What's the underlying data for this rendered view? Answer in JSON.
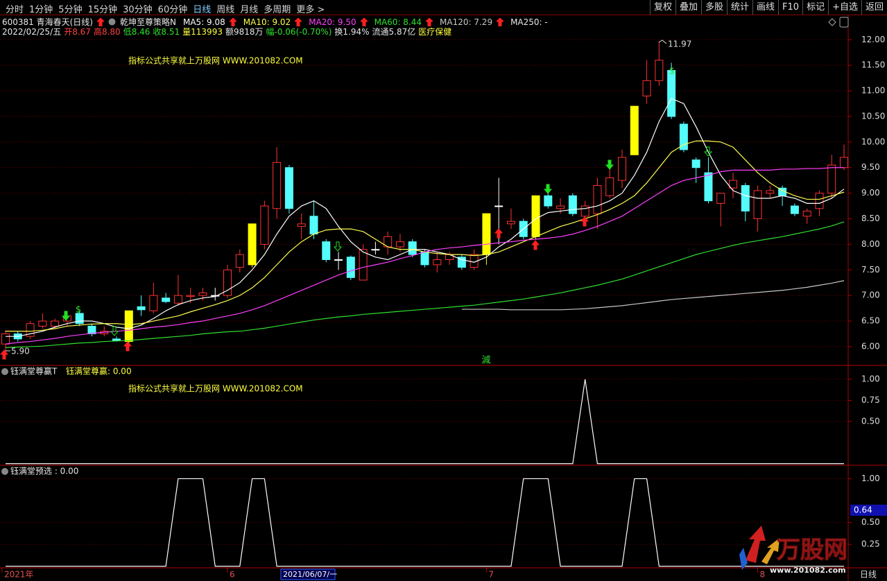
{
  "toolbar": {
    "tabs": [
      {
        "label": "分时",
        "selected": false
      },
      {
        "label": "1分钟",
        "selected": false
      },
      {
        "label": "5分钟",
        "selected": false
      },
      {
        "label": "15分钟",
        "selected": false
      },
      {
        "label": "30分钟",
        "selected": false
      },
      {
        "label": "60分钟",
        "selected": false
      },
      {
        "label": "日线",
        "selected": true
      },
      {
        "label": "周线",
        "selected": false
      },
      {
        "label": "月线",
        "selected": false
      },
      {
        "label": "多周期",
        "selected": false
      },
      {
        "label": "更多 >",
        "selected": false
      }
    ],
    "buttons": [
      "复权",
      "叠加",
      "多股",
      "统计",
      "画线",
      "F10",
      "标记",
      "+自选",
      "返回"
    ]
  },
  "header": {
    "stock": "600381 青海春天(日线)",
    "strategy": "乾坤至尊策略N",
    "ma250": "MA250: -",
    "quote": [
      {
        "text": "2022/02/25/五",
        "color": "#e8e8e8"
      },
      {
        "text": "开8.67",
        "color": "#ff4040"
      },
      {
        "text": "高8.80",
        "color": "#ff4040"
      },
      {
        "text": "低8.46",
        "color": "#30e030"
      },
      {
        "text": "收8.51",
        "color": "#30e030"
      },
      {
        "text": "量113993",
        "color": "#ffff40"
      },
      {
        "text": "额9818万",
        "color": "#e8e8e8"
      },
      {
        "text": "幅-0.06(-0.70%)",
        "color": "#30e030"
      },
      {
        "text": "换1.94%",
        "color": "#e8e8e8"
      },
      {
        "text": "流通5.87亿",
        "color": "#e8e8e8"
      },
      {
        "text": "医疗保健",
        "color": "#ffff40"
      }
    ]
  },
  "chart_data": [
    {
      "type": "candlestick",
      "categories": [
        "2021年",
        null,
        null,
        null,
        null,
        null,
        null,
        null,
        null,
        null,
        null,
        null,
        null,
        null,
        null,
        null,
        null,
        null,
        "6",
        null,
        null,
        null,
        null,
        null,
        null,
        null,
        null,
        null,
        null,
        null,
        null,
        null,
        null,
        null,
        null,
        null,
        null,
        null,
        null,
        "7",
        null,
        null,
        null,
        null,
        null,
        null,
        null,
        null,
        null,
        null,
        null,
        null,
        null,
        null,
        null,
        null,
        null,
        null,
        null,
        null,
        null,
        "8",
        null,
        null,
        null,
        null,
        null,
        null,
        null
      ],
      "open": [
        6.05,
        6.25,
        6.2,
        6.4,
        6.4,
        6.5,
        6.65,
        6.4,
        6.25,
        6.15,
        6.1,
        6.78,
        6.7,
        6.95,
        6.85,
        6.98,
        7.0,
        7.0,
        7.0,
        7.55,
        7.6,
        8.0,
        8.7,
        9.5,
        8.35,
        8.55,
        8.05,
        7.7,
        7.75,
        7.3,
        7.9,
        7.95,
        7.95,
        8.05,
        7.85,
        7.6,
        7.7,
        7.75,
        7.55,
        7.8,
        8.75,
        8.4,
        8.45,
        8.15,
        8.95,
        8.7,
        8.95,
        8.55,
        8.6,
        8.95,
        9.25,
        9.75,
        10.9,
        11.2,
        11.4,
        10.35,
        9.65,
        9.4,
        8.8,
        9.1,
        9.15,
        8.5,
        9.0,
        9.1,
        8.75,
        8.55,
        8.7,
        9.0,
        9.5
      ],
      "high": [
        6.32,
        6.3,
        6.5,
        6.65,
        6.55,
        6.65,
        6.7,
        6.45,
        6.4,
        6.2,
        6.7,
        7.0,
        7.25,
        7.05,
        7.4,
        7.15,
        7.15,
        7.15,
        7.6,
        7.9,
        8.4,
        8.85,
        9.9,
        9.55,
        8.6,
        8.85,
        8.1,
        7.85,
        7.78,
        8.0,
        8.05,
        8.25,
        8.2,
        8.1,
        7.9,
        7.85,
        7.85,
        7.8,
        7.9,
        8.6,
        9.3,
        8.7,
        8.5,
        8.95,
        9.0,
        8.9,
        9.0,
        8.85,
        9.3,
        9.6,
        9.85,
        10.7,
        11.6,
        11.97,
        11.55,
        10.4,
        9.7,
        9.7,
        9.0,
        9.4,
        9.2,
        9.15,
        9.15,
        9.15,
        8.8,
        8.7,
        9.05,
        9.75,
        9.95
      ],
      "low": [
        5.9,
        6.1,
        6.15,
        6.35,
        6.35,
        6.4,
        6.4,
        6.2,
        6.2,
        6.1,
        6.05,
        6.6,
        6.65,
        6.85,
        6.8,
        6.85,
        6.9,
        6.9,
        6.95,
        7.45,
        7.55,
        7.9,
        8.5,
        8.6,
        8.1,
        8.1,
        7.65,
        7.5,
        7.3,
        7.3,
        7.8,
        7.8,
        7.85,
        7.75,
        7.55,
        7.45,
        7.6,
        7.5,
        7.5,
        7.6,
        8.0,
        8.3,
        8.1,
        8.1,
        8.7,
        8.6,
        8.55,
        8.5,
        8.3,
        8.9,
        9.1,
        9.75,
        10.75,
        11.1,
        10.45,
        9.8,
        9.2,
        8.8,
        8.35,
        8.9,
        8.45,
        8.25,
        8.9,
        8.75,
        8.55,
        8.4,
        8.55,
        8.9,
        9.45
      ],
      "close": [
        6.25,
        6.15,
        6.45,
        6.5,
        6.5,
        6.6,
        6.45,
        6.25,
        6.3,
        6.12,
        6.7,
        6.72,
        7.0,
        6.88,
        7.0,
        7.0,
        7.05,
        7.0,
        7.5,
        7.8,
        8.4,
        8.75,
        9.6,
        8.7,
        8.4,
        8.2,
        7.7,
        7.7,
        7.35,
        7.9,
        7.9,
        8.15,
        8.05,
        7.8,
        7.6,
        7.7,
        7.8,
        7.55,
        7.8,
        8.6,
        8.75,
        8.45,
        8.15,
        8.95,
        8.75,
        8.75,
        8.6,
        8.75,
        9.15,
        9.3,
        9.7,
        10.7,
        11.2,
        11.6,
        10.5,
        9.85,
        9.5,
        8.85,
        9.0,
        9.25,
        8.65,
        9.05,
        9.05,
        8.95,
        8.6,
        8.65,
        9.0,
        9.55,
        9.7
      ],
      "colors": [
        "#ff3232",
        "#54fcfc",
        "#ff3232",
        "#ff3232",
        "#ff3232",
        "#ff3232",
        "#54fcfc",
        "#54fcfc",
        "#ff3232",
        "#54fcfc",
        "#ffff00",
        "#54fcfc",
        "#ff3232",
        "#54fcfc",
        "#ff3232",
        "#ff3232",
        "#ff3232",
        "#ffffff",
        "#ff3232",
        "#ff3232",
        "#ffff00",
        "#ff3232",
        "#ff3232",
        "#54fcfc",
        "#ff3232",
        "#54fcfc",
        "#54fcfc",
        "#ffffff",
        "#54fcfc",
        "#ff3232",
        "#ffffff",
        "#ff3232",
        "#ff3232",
        "#54fcfc",
        "#54fcfc",
        "#ff3232",
        "#ff3232",
        "#54fcfc",
        "#ff3232",
        "#ffff00",
        "#ffffff",
        "#ff3232",
        "#54fcfc",
        "#ffff00",
        "#54fcfc",
        "#ff3232",
        "#54fcfc",
        "#ff3232",
        "#ff3232",
        "#ff3232",
        "#ff3232",
        "#ffff00",
        "#ff3232",
        "#ff3232",
        "#54fcfc",
        "#54fcfc",
        "#54fcfc",
        "#54fcfc",
        "#ff3232",
        "#ff3232",
        "#54fcfc",
        "#ff3232",
        "#ff3232",
        "#54fcfc",
        "#54fcfc",
        "#ff3232",
        "#ff3232",
        "#ff3232",
        "#ff3232"
      ],
      "series": [
        {
          "name": "MA5: 9.08",
          "color": "#ffffff",
          "values": [
            6.2,
            6.2,
            6.25,
            6.3,
            6.38,
            6.45,
            6.5,
            6.5,
            6.45,
            6.38,
            6.35,
            6.42,
            6.55,
            6.7,
            6.82,
            6.9,
            6.95,
            6.98,
            7.1,
            7.25,
            7.5,
            7.8,
            8.2,
            8.55,
            8.75,
            8.85,
            8.7,
            8.35,
            8.05,
            7.85,
            7.75,
            7.7,
            7.8,
            7.9,
            7.9,
            7.85,
            7.8,
            7.7,
            7.65,
            7.75,
            7.95,
            8.1,
            8.3,
            8.5,
            8.62,
            8.65,
            8.68,
            8.7,
            8.75,
            8.85,
            9.0,
            9.35,
            9.8,
            10.4,
            10.85,
            10.75,
            10.3,
            9.8,
            9.35,
            9.05,
            8.95,
            8.9,
            8.9,
            8.95,
            8.9,
            8.8,
            8.8,
            8.9,
            9.08
          ]
        },
        {
          "name": "MA10: 9.02",
          "color": "#ffff50",
          "values": [
            6.3,
            6.3,
            6.3,
            6.32,
            6.35,
            6.4,
            6.42,
            6.44,
            6.45,
            6.45,
            6.43,
            6.45,
            6.5,
            6.55,
            6.6,
            6.68,
            6.75,
            6.82,
            6.9,
            7.0,
            7.15,
            7.35,
            7.6,
            7.85,
            8.05,
            8.2,
            8.28,
            8.3,
            8.3,
            8.25,
            8.1,
            7.95,
            7.9,
            7.9,
            7.85,
            7.82,
            7.8,
            7.8,
            7.78,
            7.8,
            7.85,
            7.95,
            8.05,
            8.15,
            8.25,
            8.35,
            8.42,
            8.5,
            8.58,
            8.68,
            8.8,
            8.95,
            9.2,
            9.5,
            9.8,
            9.95,
            10.02,
            10.02,
            10.0,
            9.9,
            9.65,
            9.4,
            9.2,
            9.05,
            8.95,
            8.88,
            8.88,
            8.95,
            9.02
          ]
        },
        {
          "name": "MA20: 9.50",
          "color": "#ff40ff",
          "values": [
            6.05,
            6.08,
            6.1,
            6.13,
            6.16,
            6.2,
            6.23,
            6.26,
            6.28,
            6.3,
            6.32,
            6.35,
            6.38,
            6.4,
            6.43,
            6.47,
            6.5,
            6.55,
            6.6,
            6.65,
            6.72,
            6.8,
            6.9,
            7.0,
            7.1,
            7.2,
            7.3,
            7.4,
            7.48,
            7.55,
            7.6,
            7.65,
            7.72,
            7.78,
            7.85,
            7.9,
            7.93,
            7.95,
            7.98,
            8.0,
            8.03,
            8.05,
            8.08,
            8.1,
            8.12,
            8.15,
            8.2,
            8.27,
            8.35,
            8.45,
            8.55,
            8.7,
            8.85,
            9.0,
            9.15,
            9.25,
            9.3,
            9.35,
            9.42,
            9.45,
            9.45,
            9.45,
            9.45,
            9.47,
            9.47,
            9.48,
            9.48,
            9.5,
            9.5
          ]
        },
        {
          "name": "MA60: 8.44",
          "color": "#30e030",
          "values": [
            5.98,
            5.99,
            6.0,
            6.01,
            6.03,
            6.05,
            6.07,
            6.08,
            6.1,
            6.11,
            6.12,
            6.14,
            6.16,
            6.18,
            6.2,
            6.22,
            6.25,
            6.27,
            6.29,
            6.3,
            6.33,
            6.36,
            6.4,
            6.44,
            6.48,
            6.52,
            6.55,
            6.58,
            6.6,
            6.63,
            6.65,
            6.67,
            6.69,
            6.71,
            6.73,
            6.75,
            6.77,
            6.79,
            6.81,
            6.84,
            6.87,
            6.9,
            6.93,
            6.97,
            7.01,
            7.05,
            7.1,
            7.15,
            7.2,
            7.26,
            7.32,
            7.4,
            7.48,
            7.56,
            7.64,
            7.72,
            7.8,
            7.86,
            7.92,
            7.98,
            8.03,
            8.07,
            8.11,
            8.15,
            8.2,
            8.25,
            8.3,
            8.36,
            8.44
          ]
        },
        {
          "name": "MA120: 7.29",
          "color": "#c8c8c8",
          "values": [
            null,
            null,
            null,
            null,
            null,
            null,
            null,
            null,
            null,
            null,
            null,
            null,
            null,
            null,
            null,
            null,
            null,
            null,
            null,
            null,
            null,
            null,
            null,
            null,
            null,
            null,
            null,
            null,
            null,
            null,
            null,
            null,
            null,
            null,
            null,
            null,
            null,
            6.73,
            6.73,
            6.73,
            6.73,
            6.72,
            6.72,
            6.72,
            6.72,
            6.72,
            6.73,
            6.74,
            6.76,
            6.78,
            6.8,
            6.83,
            6.86,
            6.89,
            6.92,
            6.94,
            6.96,
            6.98,
            7.0,
            7.02,
            7.04,
            7.06,
            7.08,
            7.1,
            7.13,
            7.16,
            7.2,
            7.24,
            7.29
          ]
        }
      ],
      "ylim": [
        5.66,
        12.37
      ],
      "yticks": [
        {
          "value": 6,
          "label": "6.00"
        },
        {
          "value": 6.5,
          "label": "6.50"
        },
        {
          "value": 7,
          "label": "7.00"
        },
        {
          "value": 7.5,
          "label": "7.50"
        },
        {
          "value": 8,
          "label": "8.00"
        },
        {
          "value": 8.5,
          "label": "8.50"
        },
        {
          "value": 9,
          "label": "9.00"
        },
        {
          "value": 9.5,
          "label": "9.50"
        },
        {
          "value": 10,
          "label": "10.00"
        },
        {
          "value": 10.5,
          "label": "10.50"
        },
        {
          "value": 11,
          "label": "11.00"
        },
        {
          "value": 11.5,
          "label": "11.50"
        },
        {
          "value": 12,
          "label": "12.00"
        }
      ],
      "grid": true,
      "annotations": [
        "11.97",
        "5.90",
        "指标公式共享就上万股网 WWW.201082.COM",
        "減",
        "$",
        "$"
      ]
    },
    {
      "type": "line",
      "title": "钰满堂尊赢T",
      "subtitle": "钰满堂尊赢: 0.00",
      "color": "#ffffff",
      "values": [
        0,
        0,
        0,
        0,
        0,
        0,
        0,
        0,
        0,
        0,
        0,
        0,
        0,
        0,
        0,
        0,
        0,
        0,
        0,
        0,
        0,
        0,
        0,
        0,
        0,
        0,
        0,
        0,
        0,
        0,
        0,
        0,
        0,
        0,
        0,
        0,
        0,
        0,
        0,
        0,
        0,
        0,
        0,
        0,
        0,
        0,
        0,
        1,
        0,
        0,
        0,
        0,
        0,
        0,
        0,
        0,
        0,
        0,
        0,
        0,
        0,
        0,
        0,
        0,
        0,
        0,
        0,
        0,
        0
      ],
      "ylim": [
        -0.01,
        1.14
      ],
      "yticks": [
        {
          "value": 1,
          "label": "1.00"
        },
        {
          "value": 0.75,
          "label": "0.75"
        },
        {
          "value": 0.5,
          "label": "0.50"
        }
      ],
      "grid": true,
      "annotations": [
        "指标公式共享就上万股网 WWW.201082.COM"
      ]
    },
    {
      "type": "line",
      "title": "钰满堂预选 : 0.00",
      "color": "#ffffff",
      "values": [
        0,
        0,
        0,
        0,
        0,
        0,
        0,
        0,
        0,
        0,
        0,
        0,
        0,
        0,
        1,
        1,
        1,
        0,
        0,
        0,
        1,
        1,
        0,
        0,
        0,
        0,
        0,
        0,
        0,
        0,
        0,
        0,
        0,
        0,
        0,
        0,
        0,
        0,
        0,
        0,
        0,
        0,
        1,
        1,
        1,
        0,
        0,
        0,
        0,
        0,
        0,
        1,
        1,
        0,
        0,
        0,
        0,
        0,
        0,
        0,
        0,
        0,
        0,
        0,
        0,
        0,
        0,
        0,
        0
      ],
      "ylim": [
        -0.01,
        1.13
      ],
      "yticks": [
        {
          "value": 1,
          "label": "1.00"
        },
        {
          "value": 0.5,
          "label": "0.50"
        },
        {
          "value": 0.25,
          "label": "0.25"
        }
      ],
      "grid": true,
      "cursor_value": 0.64
    }
  ],
  "x_axis": {
    "cursor_date": "2021/06/07/一",
    "period": "日线"
  },
  "watermark": {
    "logo": "万股网",
    "url": "www.201082.com"
  }
}
